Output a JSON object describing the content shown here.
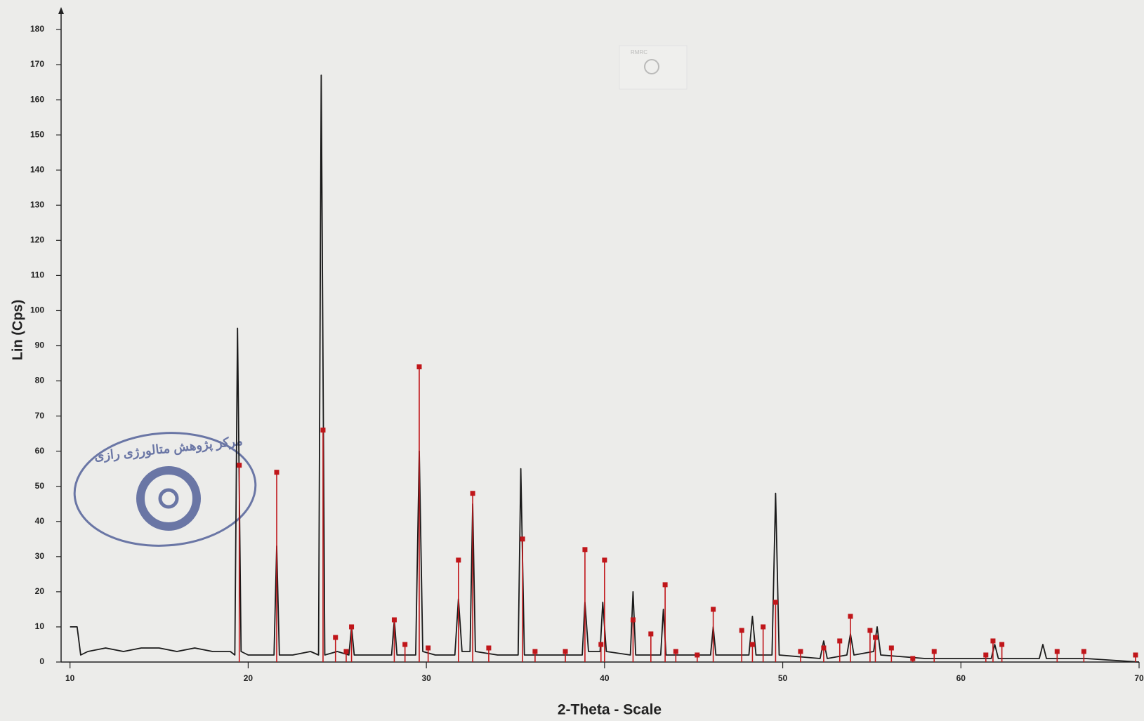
{
  "chart_data": {
    "type": "line",
    "xlabel": "2-Theta - Scale",
    "ylabel": "Lin (Cps)",
    "annotations": [
      "مرکز پژوهش متالورژی رازی",
      "RMRC"
    ],
    "xlim": [
      9.5,
      70
    ],
    "ylim": [
      0,
      180
    ],
    "xticks": [
      10,
      20,
      30,
      40,
      50,
      60,
      70
    ],
    "yticks": [
      0,
      10,
      20,
      30,
      40,
      50,
      60,
      70,
      80,
      90,
      100,
      110,
      120,
      130,
      140,
      150,
      160,
      170,
      180
    ],
    "series": [
      {
        "color": "#1a1a1a",
        "x": [
          10,
          10.4,
          10.6,
          11,
          12,
          13,
          14,
          15,
          16,
          17,
          18,
          19,
          19.25,
          19.4,
          19.6,
          20,
          21,
          21.45,
          21.6,
          21.75,
          22.5,
          23.5,
          23.95,
          24.1,
          24.3,
          25,
          25.65,
          25.8,
          25.95,
          27,
          28.05,
          28.2,
          28.35,
          29.4,
          29.6,
          29.8,
          30.5,
          31.6,
          31.8,
          32,
          32.45,
          32.6,
          32.75,
          34,
          35.15,
          35.3,
          35.5,
          37,
          38.75,
          38.9,
          39.1,
          39.75,
          39.9,
          40.1,
          41.45,
          41.6,
          41.75,
          43.15,
          43.3,
          43.45,
          45,
          45.95,
          46.1,
          46.25,
          48.1,
          48.3,
          48.5,
          49.4,
          49.6,
          49.8,
          52.1,
          52.3,
          52.5,
          53.6,
          53.8,
          54,
          55.1,
          55.3,
          55.5,
          58,
          61.7,
          61.9,
          62.1,
          64.4,
          64.6,
          64.8,
          67,
          70
        ],
        "values": [
          10,
          10,
          2,
          3,
          4,
          3,
          4,
          4,
          3,
          4,
          3,
          3,
          2,
          95,
          3,
          2,
          2,
          2,
          33,
          2,
          2,
          3,
          2,
          167,
          2,
          3,
          2,
          10,
          2,
          2,
          2,
          12,
          2,
          2,
          60,
          3,
          2,
          2,
          18,
          3,
          3,
          45,
          3,
          2,
          2,
          55,
          2,
          2,
          2,
          17,
          3,
          3,
          17,
          3,
          2,
          20,
          2,
          2,
          15,
          2,
          2,
          2,
          10,
          2,
          2,
          13,
          2,
          2,
          48,
          2,
          1,
          6,
          1,
          2,
          8,
          2,
          3,
          10,
          2,
          1,
          1,
          5,
          1,
          1,
          5,
          1,
          1,
          0
        ]
      },
      {
        "color": "#c0161a",
        "style": "stick",
        "x": [
          19.5,
          21.6,
          24.2,
          24.9,
          25.5,
          25.8,
          28.2,
          28.8,
          29.6,
          30.1,
          31.8,
          32.6,
          33.5,
          35.4,
          36.1,
          37.8,
          38.9,
          39.8,
          40,
          41.6,
          42.6,
          43.4,
          44,
          45.2,
          46.1,
          47.7,
          48.3,
          48.9,
          49.6,
          51,
          52.3,
          53.2,
          53.8,
          54.9,
          55.2,
          56.1,
          57.3,
          58.5,
          61.4,
          61.8,
          62.3,
          65.4,
          66.9,
          69.8
        ],
        "values": [
          56,
          54,
          66,
          7,
          3,
          10,
          12,
          5,
          84,
          4,
          29,
          48,
          4,
          35,
          3,
          3,
          32,
          5,
          29,
          12,
          8,
          22,
          3,
          2,
          15,
          9,
          5,
          10,
          17,
          3,
          4,
          6,
          13,
          9,
          7,
          4,
          1,
          3,
          2,
          6,
          5,
          3,
          3,
          2
        ]
      }
    ]
  }
}
